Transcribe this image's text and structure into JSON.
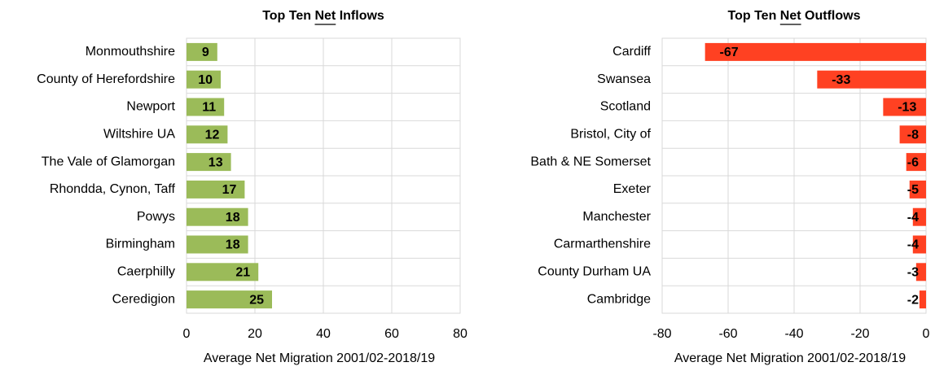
{
  "chart_data": [
    {
      "type": "bar",
      "orientation": "horizontal",
      "title": "Top Ten Net Inflows",
      "underline": "Net",
      "categories": [
        "Monmouthshire",
        "County of Herefordshire",
        "Newport",
        "Wiltshire UA",
        "The Vale of Glamorgan",
        "Rhondda, Cynon, Taff",
        "Powys",
        "Birmingham",
        "Caerphilly",
        "Ceredigion"
      ],
      "values": [
        9,
        10,
        11,
        12,
        13,
        17,
        18,
        18,
        21,
        25
      ],
      "color": "#9bbb59",
      "xlim": [
        0,
        80
      ],
      "xticks": [
        0,
        20,
        40,
        60,
        80
      ],
      "grid": true,
      "xlabel": "Average Net Migration 2001/02-2018/19"
    },
    {
      "type": "bar",
      "orientation": "horizontal",
      "title": "Top Ten Net Outflows",
      "underline": "Net",
      "categories": [
        "Cardiff",
        "Swansea",
        "Scotland",
        "Bristol, City of",
        "Bath & NE Somerset",
        "Exeter",
        "Manchester",
        "Carmarthenshire",
        "County Durham UA",
        "Cambridge"
      ],
      "values": [
        -67,
        -33,
        -13,
        -8,
        -6,
        -5,
        -4,
        -4,
        -3,
        -2
      ],
      "color": "#ff4122",
      "xlim": [
        -80,
        0
      ],
      "xticks": [
        -80,
        -60,
        -40,
        -20,
        0
      ],
      "grid": true,
      "xlabel": "Average Net Migration 2001/02-2018/19"
    }
  ]
}
